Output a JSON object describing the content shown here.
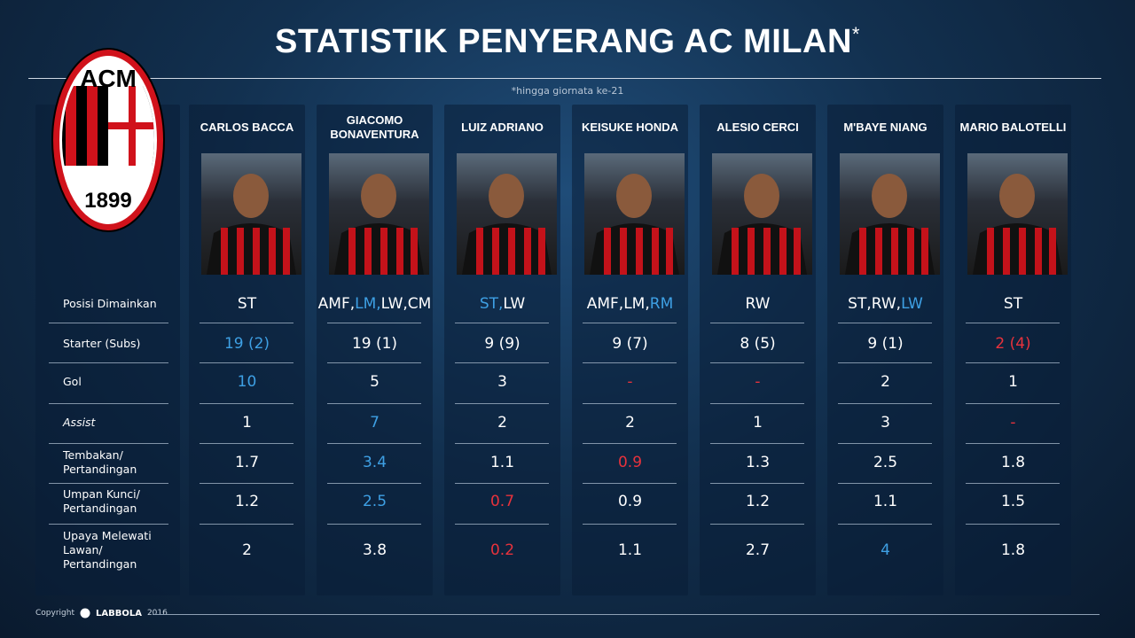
{
  "header": {
    "title": "STATISTIK PENYERANG AC MILAN",
    "asterisk": "*",
    "footnote": "*hingga giornata ke-21"
  },
  "logo": {
    "top": "ACM",
    "year": "1899"
  },
  "table": {
    "columns": [
      "CARLOS BACCA",
      "GIACOMO BONAVENTURA",
      "LUIZ ADRIANO",
      "KEISUKE HONDA",
      "ALESIO CERCI",
      "M'BAYE NIANG",
      "MARIO BALOTELLI"
    ],
    "rows": [
      {
        "label": "Posisi Dimainkan",
        "cells": [
          {
            "parts": [
              {
                "text": "ST"
              }
            ]
          },
          {
            "parts": [
              {
                "text": "AMF,"
              },
              {
                "text": "LM,",
                "color": "#3ea0e4"
              },
              {
                "text": "LW,CM"
              }
            ]
          },
          {
            "parts": [
              {
                "text": "ST,",
                "color": "#3ea0e4"
              },
              {
                "text": "LW"
              }
            ]
          },
          {
            "parts": [
              {
                "text": "AMF,LM,"
              },
              {
                "text": "RM",
                "color": "#3ea0e4"
              }
            ]
          },
          {
            "parts": [
              {
                "text": "RW"
              }
            ]
          },
          {
            "parts": [
              {
                "text": "ST,RW,"
              },
              {
                "text": "LW",
                "color": "#3ea0e4"
              }
            ]
          },
          {
            "parts": [
              {
                "text": "ST"
              }
            ]
          }
        ]
      },
      {
        "label": "Starter (Subs)",
        "cells": [
          {
            "parts": [
              {
                "text": "19 (2)",
                "color": "#3ea0e4"
              }
            ]
          },
          {
            "parts": [
              {
                "text": "19 (1)"
              }
            ]
          },
          {
            "parts": [
              {
                "text": "9 (9)"
              }
            ]
          },
          {
            "parts": [
              {
                "text": "9 (7)"
              }
            ]
          },
          {
            "parts": [
              {
                "text": "8 (5)"
              }
            ]
          },
          {
            "parts": [
              {
                "text": "9 (1)"
              }
            ]
          },
          {
            "parts": [
              {
                "text": "2 (4)",
                "color": "#e8323c"
              }
            ]
          }
        ]
      },
      {
        "label": "Gol",
        "cells": [
          {
            "parts": [
              {
                "text": "10",
                "color": "#3ea0e4"
              }
            ]
          },
          {
            "parts": [
              {
                "text": "5"
              }
            ]
          },
          {
            "parts": [
              {
                "text": "3"
              }
            ]
          },
          {
            "parts": [
              {
                "text": "-",
                "color": "#e8323c"
              }
            ]
          },
          {
            "parts": [
              {
                "text": "-",
                "color": "#e8323c"
              }
            ]
          },
          {
            "parts": [
              {
                "text": "2"
              }
            ]
          },
          {
            "parts": [
              {
                "text": "1"
              }
            ]
          }
        ]
      },
      {
        "label": "Assist",
        "italic": true,
        "cells": [
          {
            "parts": [
              {
                "text": "1"
              }
            ]
          },
          {
            "parts": [
              {
                "text": "7",
                "color": "#3ea0e4"
              }
            ]
          },
          {
            "parts": [
              {
                "text": "2"
              }
            ]
          },
          {
            "parts": [
              {
                "text": "2"
              }
            ]
          },
          {
            "parts": [
              {
                "text": "1"
              }
            ]
          },
          {
            "parts": [
              {
                "text": "3"
              }
            ]
          },
          {
            "parts": [
              {
                "text": "-",
                "color": "#e8323c"
              }
            ]
          }
        ]
      },
      {
        "label": "Tembakan/ Pertandingan",
        "cells": [
          {
            "parts": [
              {
                "text": "1.7"
              }
            ]
          },
          {
            "parts": [
              {
                "text": "3.4",
                "color": "#3ea0e4"
              }
            ]
          },
          {
            "parts": [
              {
                "text": "1.1"
              }
            ]
          },
          {
            "parts": [
              {
                "text": "0.9",
                "color": "#e8323c"
              }
            ]
          },
          {
            "parts": [
              {
                "text": "1.3"
              }
            ]
          },
          {
            "parts": [
              {
                "text": "2.5"
              }
            ]
          },
          {
            "parts": [
              {
                "text": "1.8"
              }
            ]
          }
        ]
      },
      {
        "label": "Umpan Kunci/ Pertandingan",
        "cells": [
          {
            "parts": [
              {
                "text": "1.2"
              }
            ]
          },
          {
            "parts": [
              {
                "text": "2.5",
                "color": "#3ea0e4"
              }
            ]
          },
          {
            "parts": [
              {
                "text": "0.7",
                "color": "#e8323c"
              }
            ]
          },
          {
            "parts": [
              {
                "text": "0.9"
              }
            ]
          },
          {
            "parts": [
              {
                "text": "1.2"
              }
            ]
          },
          {
            "parts": [
              {
                "text": "1.1"
              }
            ]
          },
          {
            "parts": [
              {
                "text": "1.5"
              }
            ]
          }
        ]
      },
      {
        "label": "Upaya Melewati Lawan/ Pertandingan",
        "cells": [
          {
            "parts": [
              {
                "text": "2"
              }
            ]
          },
          {
            "parts": [
              {
                "text": "3.8"
              }
            ]
          },
          {
            "parts": [
              {
                "text": "0.2",
                "color": "#e8323c"
              }
            ]
          },
          {
            "parts": [
              {
                "text": "1.1"
              }
            ]
          },
          {
            "parts": [
              {
                "text": "2.7"
              }
            ]
          },
          {
            "parts": [
              {
                "text": "4",
                "color": "#3ea0e4"
              }
            ]
          },
          {
            "parts": [
              {
                "text": "1.8"
              }
            ]
          }
        ]
      }
    ]
  },
  "footer": {
    "copyright": "Copyright",
    "brand": "LABBOLA",
    "year": "2016"
  }
}
